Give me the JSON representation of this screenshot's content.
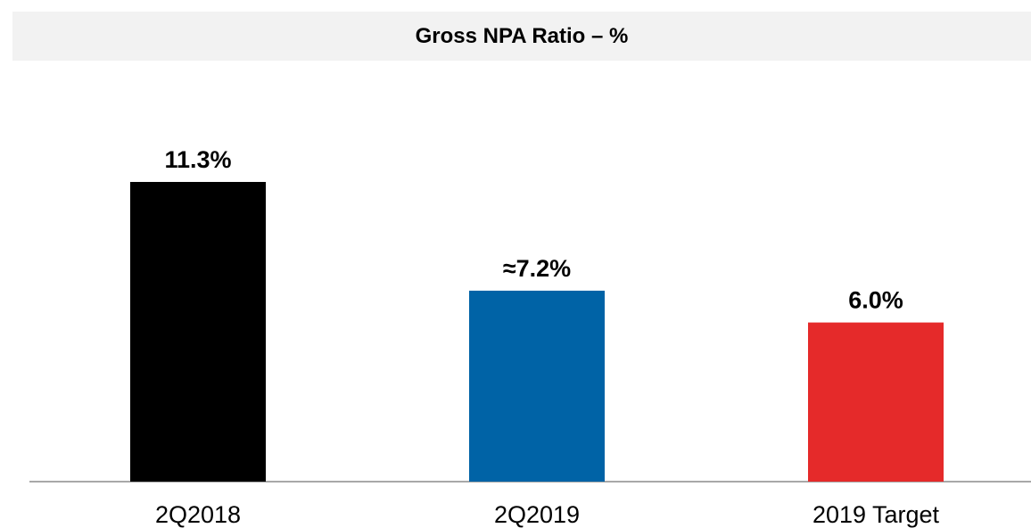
{
  "chart_data": {
    "type": "bar",
    "title": "Gross NPA Ratio – %",
    "categories": [
      "2Q2018",
      "2Q2019",
      "2019 Target"
    ],
    "values": [
      11.3,
      7.2,
      6.0
    ],
    "data_labels": [
      "11.3%",
      "≈7.2%",
      "6.0%"
    ],
    "colors": [
      "#000000",
      "#0063a6",
      "#e52a2a"
    ],
    "xlabel": "",
    "ylabel": "",
    "ylim": [
      0,
      11.3
    ],
    "grid": false,
    "legend": "none"
  }
}
